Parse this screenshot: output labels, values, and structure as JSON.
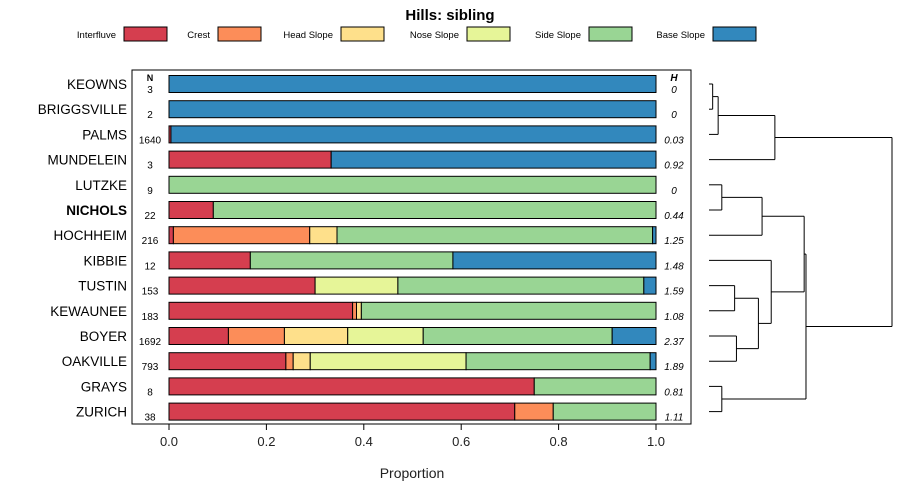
{
  "chart_data": {
    "type": "bar",
    "orientation": "horizontal",
    "stacked": true,
    "title": "Hills: sibling",
    "xlabel": "Proportion",
    "xlim": [
      0,
      1
    ],
    "xticks": [
      "0.0",
      "0.2",
      "0.4",
      "0.6",
      "0.8",
      "1.0"
    ],
    "xtick_values": [
      0,
      0.2,
      0.4,
      0.6,
      0.8,
      1.0
    ],
    "n_header": "N",
    "h_header": "H",
    "legend_position": "top",
    "categories": [
      "Interfluve",
      "Crest",
      "Head Slope",
      "Nose Slope",
      "Side Slope",
      "Base Slope"
    ],
    "colors": [
      "#d53e4f",
      "#fc8d59",
      "#fee08b",
      "#e6f598",
      "#99d594",
      "#3288bd"
    ],
    "rows": [
      {
        "name": "KEOWNS",
        "n": "3",
        "h": "0",
        "bold": false,
        "values": [
          0,
          0,
          0,
          0,
          0,
          1.0
        ]
      },
      {
        "name": "BRIGGSVILLE",
        "n": "2",
        "h": "0",
        "bold": false,
        "values": [
          0,
          0,
          0,
          0,
          0,
          1.0
        ]
      },
      {
        "name": "PALMS",
        "n": "1640",
        "h": "0.03",
        "bold": false,
        "values": [
          0.004,
          0,
          0,
          0,
          0,
          0.996
        ]
      },
      {
        "name": "MUNDELEIN",
        "n": "3",
        "h": "0.92",
        "bold": false,
        "values": [
          0.333,
          0,
          0,
          0,
          0,
          0.667
        ]
      },
      {
        "name": "LUTZKE",
        "n": "9",
        "h": "0",
        "bold": false,
        "values": [
          0,
          0,
          0,
          0,
          1.0,
          0
        ]
      },
      {
        "name": "NICHOLS",
        "n": "22",
        "h": "0.44",
        "bold": true,
        "values": [
          0.091,
          0,
          0,
          0,
          0.909,
          0
        ]
      },
      {
        "name": "HOCHHEIM",
        "n": "216",
        "h": "1.25",
        "bold": false,
        "values": [
          0.009,
          0.28,
          0.056,
          0,
          0.648,
          0.007
        ]
      },
      {
        "name": "KIBBIE",
        "n": "12",
        "h": "1.48",
        "bold": false,
        "values": [
          0.167,
          0,
          0,
          0,
          0.416,
          0.417
        ]
      },
      {
        "name": "TUSTIN",
        "n": "153",
        "h": "1.59",
        "bold": false,
        "values": [
          0.3,
          0,
          0,
          0.17,
          0.505,
          0.025
        ]
      },
      {
        "name": "KEWAUNEE",
        "n": "183",
        "h": "1.08",
        "bold": false,
        "values": [
          0.377,
          0.008,
          0.01,
          0,
          0.605,
          0
        ]
      },
      {
        "name": "BOYER",
        "n": "1692",
        "h": "2.37",
        "bold": false,
        "values": [
          0.122,
          0.115,
          0.13,
          0.155,
          0.388,
          0.09
        ]
      },
      {
        "name": "OAKVILLE",
        "n": "793",
        "h": "1.89",
        "bold": false,
        "values": [
          0.24,
          0.015,
          0.035,
          0.32,
          0.378,
          0.012
        ]
      },
      {
        "name": "GRAYS",
        "n": "8",
        "h": "0.81",
        "bold": false,
        "values": [
          0.75,
          0,
          0,
          0,
          0.25,
          0
        ]
      },
      {
        "name": "ZURICH",
        "n": "38",
        "h": "1.11",
        "bold": false,
        "values": [
          0.71,
          0.079,
          0,
          0,
          0.211,
          0
        ]
      }
    ],
    "dendrogram": {
      "leaves": [
        "KEOWNS",
        "BRIGGSVILLE",
        "PALMS",
        "MUNDELEIN",
        "LUTZKE",
        "NICHOLS",
        "HOCHHEIM",
        "KIBBIE",
        "TUSTIN",
        "KEWAUNEE",
        "BOYER",
        "OAKVILLE",
        "GRAYS",
        "ZURICH"
      ],
      "merges": [
        [
          0,
          1,
          0.02
        ],
        [
          -1,
          2,
          0.05
        ],
        [
          -2,
          3,
          0.36
        ],
        [
          4,
          5,
          0.07
        ],
        [
          8,
          9,
          0.14
        ],
        [
          10,
          11,
          0.15
        ],
        [
          -5,
          -6,
          0.27
        ],
        [
          -4,
          6,
          0.29
        ],
        [
          -7,
          7,
          0.34
        ],
        [
          -8,
          -9,
          0.52
        ],
        [
          12,
          13,
          0.07
        ],
        [
          -10,
          -11,
          0.53
        ],
        [
          -3,
          -12,
          1.0
        ]
      ]
    }
  }
}
